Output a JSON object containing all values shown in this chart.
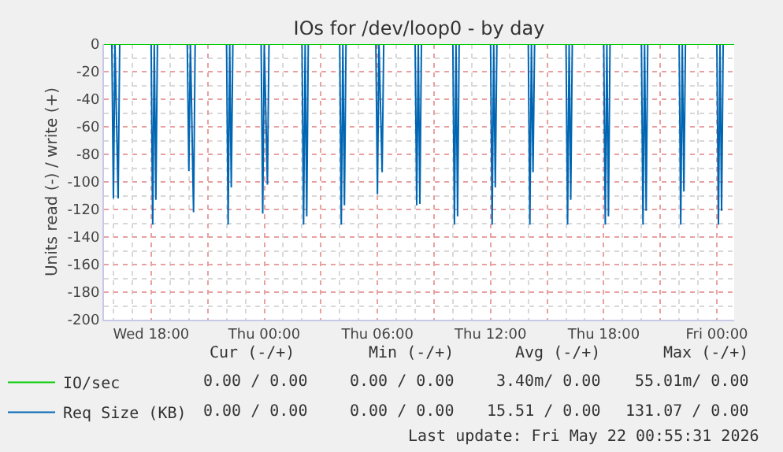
{
  "chart_data": {
    "type": "line",
    "title": "IOs for /dev/loop0 - by day",
    "ylabel": "Units read (-) / write (+)",
    "xlim": [
      "2026-05-20T15:30",
      "2026-05-22T00:55"
    ],
    "xticks": [
      {
        "value": "2026-05-20T18:00",
        "label": "Wed 18:00"
      },
      {
        "value": "2026-05-20T21:00",
        "label": null
      },
      {
        "value": "2026-05-21T00:00",
        "label": "Thu 00:00"
      },
      {
        "value": "2026-05-21T03:00",
        "label": null
      },
      {
        "value": "2026-05-21T06:00",
        "label": "Thu 06:00"
      },
      {
        "value": "2026-05-21T09:00",
        "label": null
      },
      {
        "value": "2026-05-21T12:00",
        "label": "Thu 12:00"
      },
      {
        "value": "2026-05-21T15:00",
        "label": null
      },
      {
        "value": "2026-05-21T18:00",
        "label": "Thu 18:00"
      },
      {
        "value": "2026-05-21T21:00",
        "label": null
      },
      {
        "value": "2026-05-22T00:00",
        "label": "Fri 00:00"
      }
    ],
    "ylim": [
      -200,
      0
    ],
    "yticks": [
      -200,
      -180,
      -160,
      -140,
      -120,
      -100,
      -80,
      -60,
      -40,
      -20,
      0
    ],
    "grid": true,
    "legend": "bottom left",
    "series": [
      {
        "name": "IO/sec",
        "color": "#00cc00",
        "x": [
          "2026-05-20T15:30",
          "2026-05-22T00:55"
        ],
        "values": [
          0,
          0
        ]
      },
      {
        "name": "Req Size (KB)",
        "color": "#0066b3",
        "x": [
          "2026-05-20T15:30",
          "2026-05-20T15:55",
          "2026-05-20T16:00",
          "2026-05-20T16:05",
          "2026-05-20T16:15",
          "2026-05-20T16:20",
          "2026-05-20T18:00",
          "2026-05-20T18:05",
          "2026-05-20T18:10",
          "2026-05-20T18:15",
          "2026-05-20T18:20",
          "2026-05-20T19:55",
          "2026-05-20T20:00",
          "2026-05-20T20:05",
          "2026-05-20T20:15",
          "2026-05-20T20:20",
          "2026-05-20T22:00",
          "2026-05-20T22:05",
          "2026-05-20T22:10",
          "2026-05-20T22:15",
          "2026-05-20T22:20",
          "2026-05-20T23:50",
          "2026-05-20T23:55",
          "2026-05-21T00:00",
          "2026-05-21T00:10",
          "2026-05-21T00:15",
          "2026-05-21T02:00",
          "2026-05-21T02:05",
          "2026-05-21T02:10",
          "2026-05-21T02:15",
          "2026-05-21T02:20",
          "2026-05-21T04:00",
          "2026-05-21T04:05",
          "2026-05-21T04:10",
          "2026-05-21T04:15",
          "2026-05-21T04:20",
          "2026-05-21T05:55",
          "2026-05-21T06:00",
          "2026-05-21T06:05",
          "2026-05-21T06:15",
          "2026-05-21T06:20",
          "2026-05-21T08:00",
          "2026-05-21T08:05",
          "2026-05-21T08:10",
          "2026-05-21T08:15",
          "2026-05-21T08:20",
          "2026-05-21T10:00",
          "2026-05-21T10:05",
          "2026-05-21T10:10",
          "2026-05-21T10:15",
          "2026-05-21T10:20",
          "2026-05-21T12:00",
          "2026-05-21T12:05",
          "2026-05-21T12:10",
          "2026-05-21T12:15",
          "2026-05-21T12:20",
          "2026-05-21T14:00",
          "2026-05-21T14:05",
          "2026-05-21T14:10",
          "2026-05-21T14:15",
          "2026-05-21T14:20",
          "2026-05-21T16:00",
          "2026-05-21T16:05",
          "2026-05-21T16:10",
          "2026-05-21T16:15",
          "2026-05-21T16:20",
          "2026-05-21T18:00",
          "2026-05-21T18:05",
          "2026-05-21T18:10",
          "2026-05-21T18:15",
          "2026-05-21T18:20",
          "2026-05-21T20:00",
          "2026-05-21T20:05",
          "2026-05-21T20:10",
          "2026-05-21T20:15",
          "2026-05-21T20:20",
          "2026-05-21T22:00",
          "2026-05-21T22:05",
          "2026-05-21T22:10",
          "2026-05-21T22:15",
          "2026-05-21T22:20",
          "2026-05-22T00:00",
          "2026-05-22T00:05",
          "2026-05-22T00:10",
          "2026-05-22T00:15",
          "2026-05-22T00:20",
          "2026-05-22T00:55"
        ],
        "values": [
          0,
          0,
          -112,
          0,
          -112,
          0,
          0,
          -131,
          0,
          -113,
          0,
          0,
          -92,
          0,
          -122,
          0,
          0,
          -131,
          0,
          -104,
          0,
          0,
          -123,
          0,
          -102,
          0,
          0,
          -131,
          0,
          -125,
          0,
          0,
          -131,
          0,
          -117,
          0,
          0,
          -109,
          0,
          -93,
          0,
          0,
          -117,
          0,
          -116,
          0,
          0,
          -131,
          0,
          -125,
          0,
          0,
          -131,
          0,
          -104,
          0,
          0,
          -131,
          0,
          -93,
          0,
          0,
          -131,
          0,
          -113,
          0,
          0,
          -131,
          0,
          -125,
          0,
          0,
          -131,
          0,
          -121,
          0,
          0,
          -131,
          0,
          -107,
          0,
          0,
          -131,
          0,
          -121,
          0,
          0
        ]
      }
    ],
    "annotations": [
      "Cur (-/+)",
      "Min (-/+)",
      "Avg (-/+)",
      "Max (-/+)",
      "0.00 / 0.00",
      "0.00 / 0.00",
      "3.40m/ 0.00",
      "55.01m/ 0.00",
      "0.00 / 0.00",
      "0.00 / 0.00",
      "15.51 / 0.00",
      "131.07 / 0.00",
      "Last update: Fri May 22 00:55:31 2026"
    ]
  }
}
